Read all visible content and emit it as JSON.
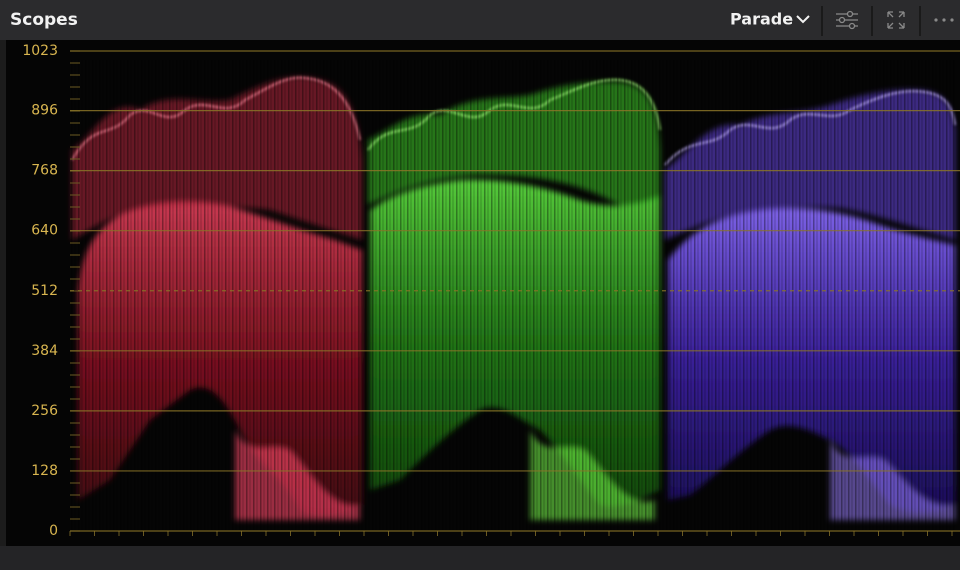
{
  "header": {
    "title": "Scopes",
    "view_menu": "Parade"
  },
  "scale": {
    "ticks": [
      1023,
      896,
      768,
      640,
      512,
      384,
      256,
      128,
      0
    ]
  }
}
